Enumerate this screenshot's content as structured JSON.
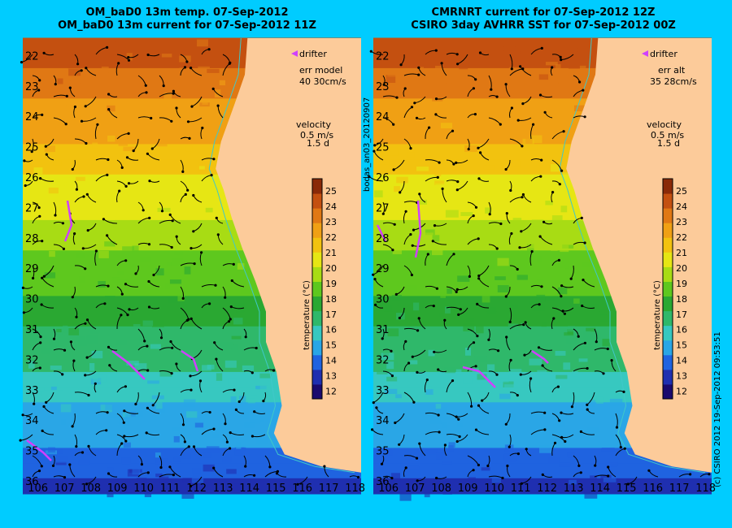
{
  "titles": {
    "left_line1": "OM_baD0 13m temp. 07-Sep-2012",
    "left_line2": "OM_baD0 13m current for 07-Sep-2012 11Z",
    "right_line1": "CMRNRT current for 07-Sep-2012 12Z",
    "right_line2": "CSIRO 3day AVHRR SST for 07-Sep-2012 00Z"
  },
  "side_labels": {
    "middle": "bodas_an03_20120907",
    "right": "(c) CSIRO 2012   19-Sep-2012 09:53:51"
  },
  "panels": [
    {
      "id": "left",
      "drifter_label": "drifter",
      "err_label": "err model",
      "err_value": "40 30cm/s",
      "velocity_label": "velocity",
      "velocity_scale": "0.5 m/s",
      "velocity_time": "1.5 d",
      "colorbar_label": "temperature (°C)"
    },
    {
      "id": "right",
      "drifter_label": "drifter",
      "err_label": "err alt",
      "err_value": "35 28cm/s",
      "velocity_label": "velocity",
      "velocity_scale": "0.5 m/s",
      "velocity_time": "1.5 d",
      "colorbar_label": "temperature (°C)"
    }
  ],
  "axes": {
    "lon_ticks": [
      "106",
      "107",
      "108",
      "109",
      "110",
      "111",
      "112",
      "113",
      "114",
      "115",
      "116",
      "117",
      "118"
    ],
    "lat_ticks": [
      "22",
      "23",
      "24",
      "25",
      "26",
      "27",
      "28",
      "29",
      "30",
      "31",
      "32",
      "33",
      "34",
      "35",
      "36"
    ],
    "lon_range": [
      105.5,
      118.3
    ],
    "lat_range": [
      21.4,
      36.4
    ]
  },
  "colorbar": {
    "ticks": [
      "12",
      "13",
      "14",
      "15",
      "16",
      "17",
      "18",
      "19",
      "20",
      "21",
      "22",
      "23",
      "24",
      "25"
    ],
    "range": [
      11.5,
      25.8
    ],
    "colors": [
      "#1a0a6e",
      "#1f2fb0",
      "#1f63e0",
      "#2aa6e6",
      "#37c8c0",
      "#2fb86a",
      "#2aa832",
      "#5ec81e",
      "#a8dc14",
      "#e6e614",
      "#f2c20f",
      "#f0a014",
      "#e07814",
      "#c45010",
      "#8a2a08"
    ]
  },
  "colors": {
    "background": "#00ccff",
    "land": "#fccb9a",
    "drifter": "#d040ff",
    "arrow": "#000000",
    "contour": "#40c8c8"
  }
}
